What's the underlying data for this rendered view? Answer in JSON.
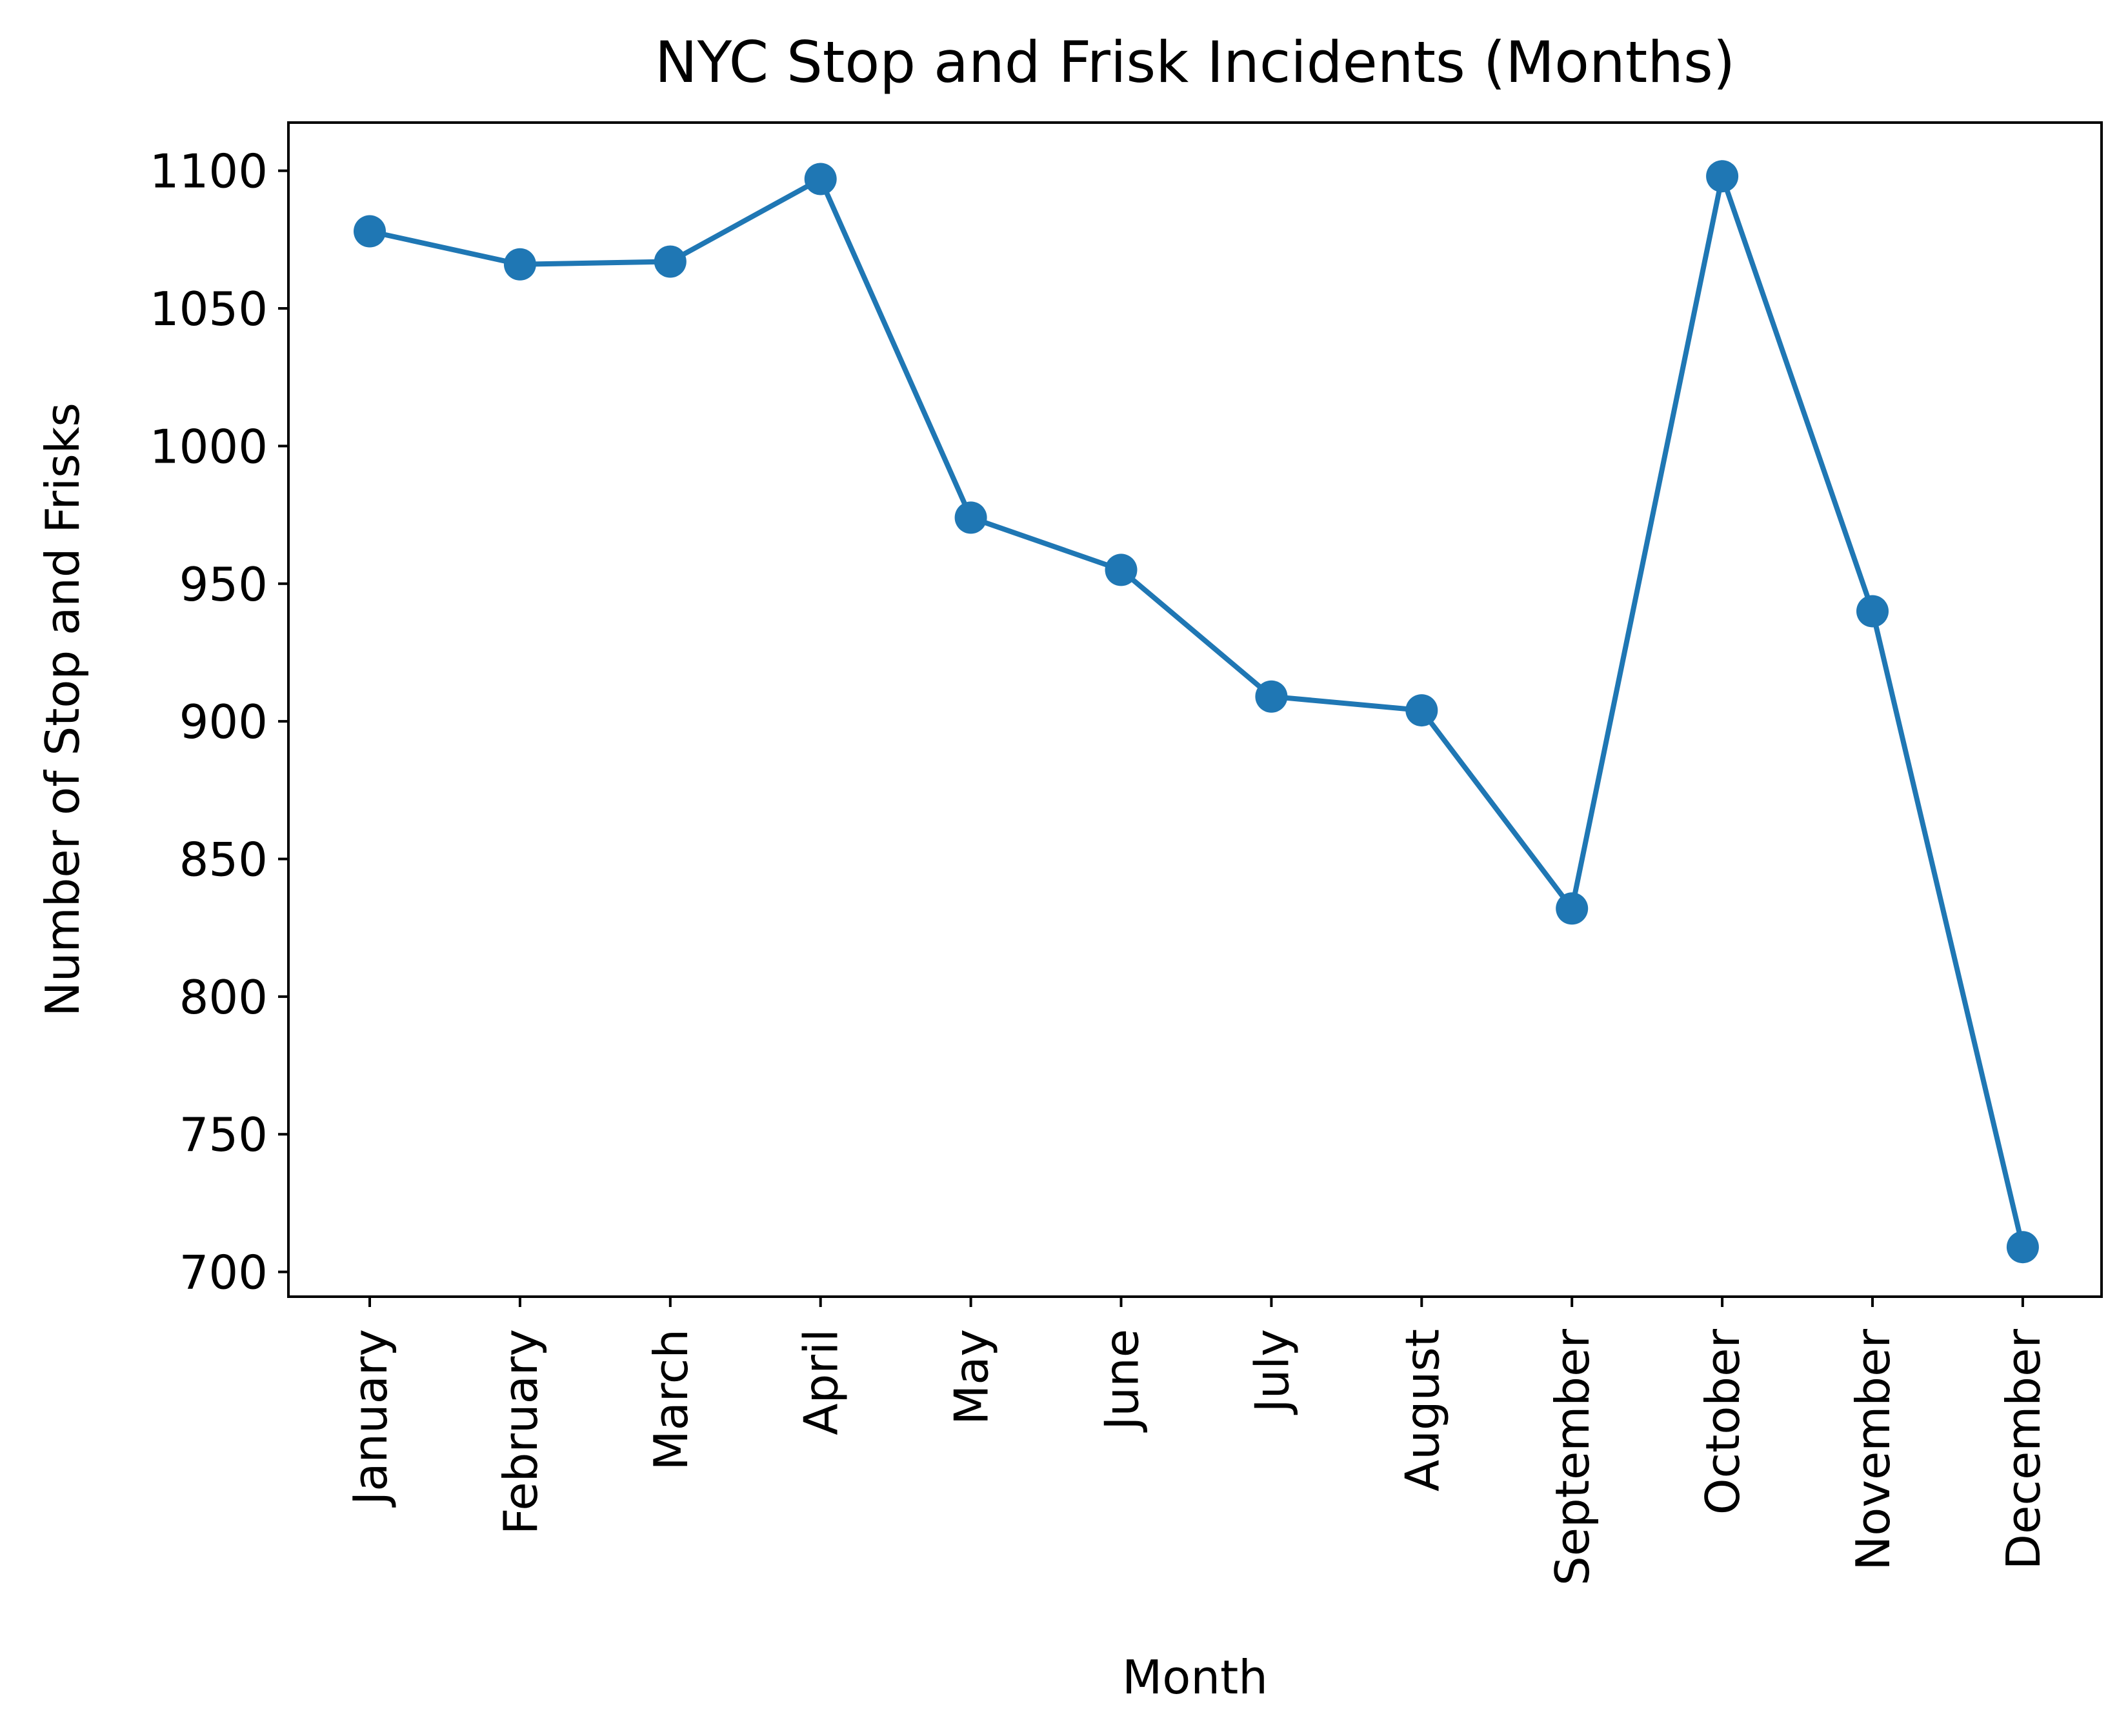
{
  "chart_data": {
    "type": "line",
    "title": "NYC Stop and Frisk Incidents (Months)",
    "xlabel": "Month",
    "ylabel": "Number of Stop and Frisks",
    "categories": [
      "January",
      "February",
      "March",
      "April",
      "May",
      "June",
      "July",
      "August",
      "September",
      "October",
      "November",
      "December"
    ],
    "series": [
      {
        "values": [
          1078,
          1066,
          1067,
          1097,
          974,
          955,
          909,
          904,
          832,
          1098,
          940,
          709
        ],
        "color": "#1f77b4",
        "marker": "circle"
      }
    ],
    "ylim": [
      691,
      1117.5
    ],
    "yticks": [
      700,
      750,
      800,
      850,
      900,
      950,
      1000,
      1050,
      1100
    ],
    "grid": false,
    "legend": "none"
  }
}
